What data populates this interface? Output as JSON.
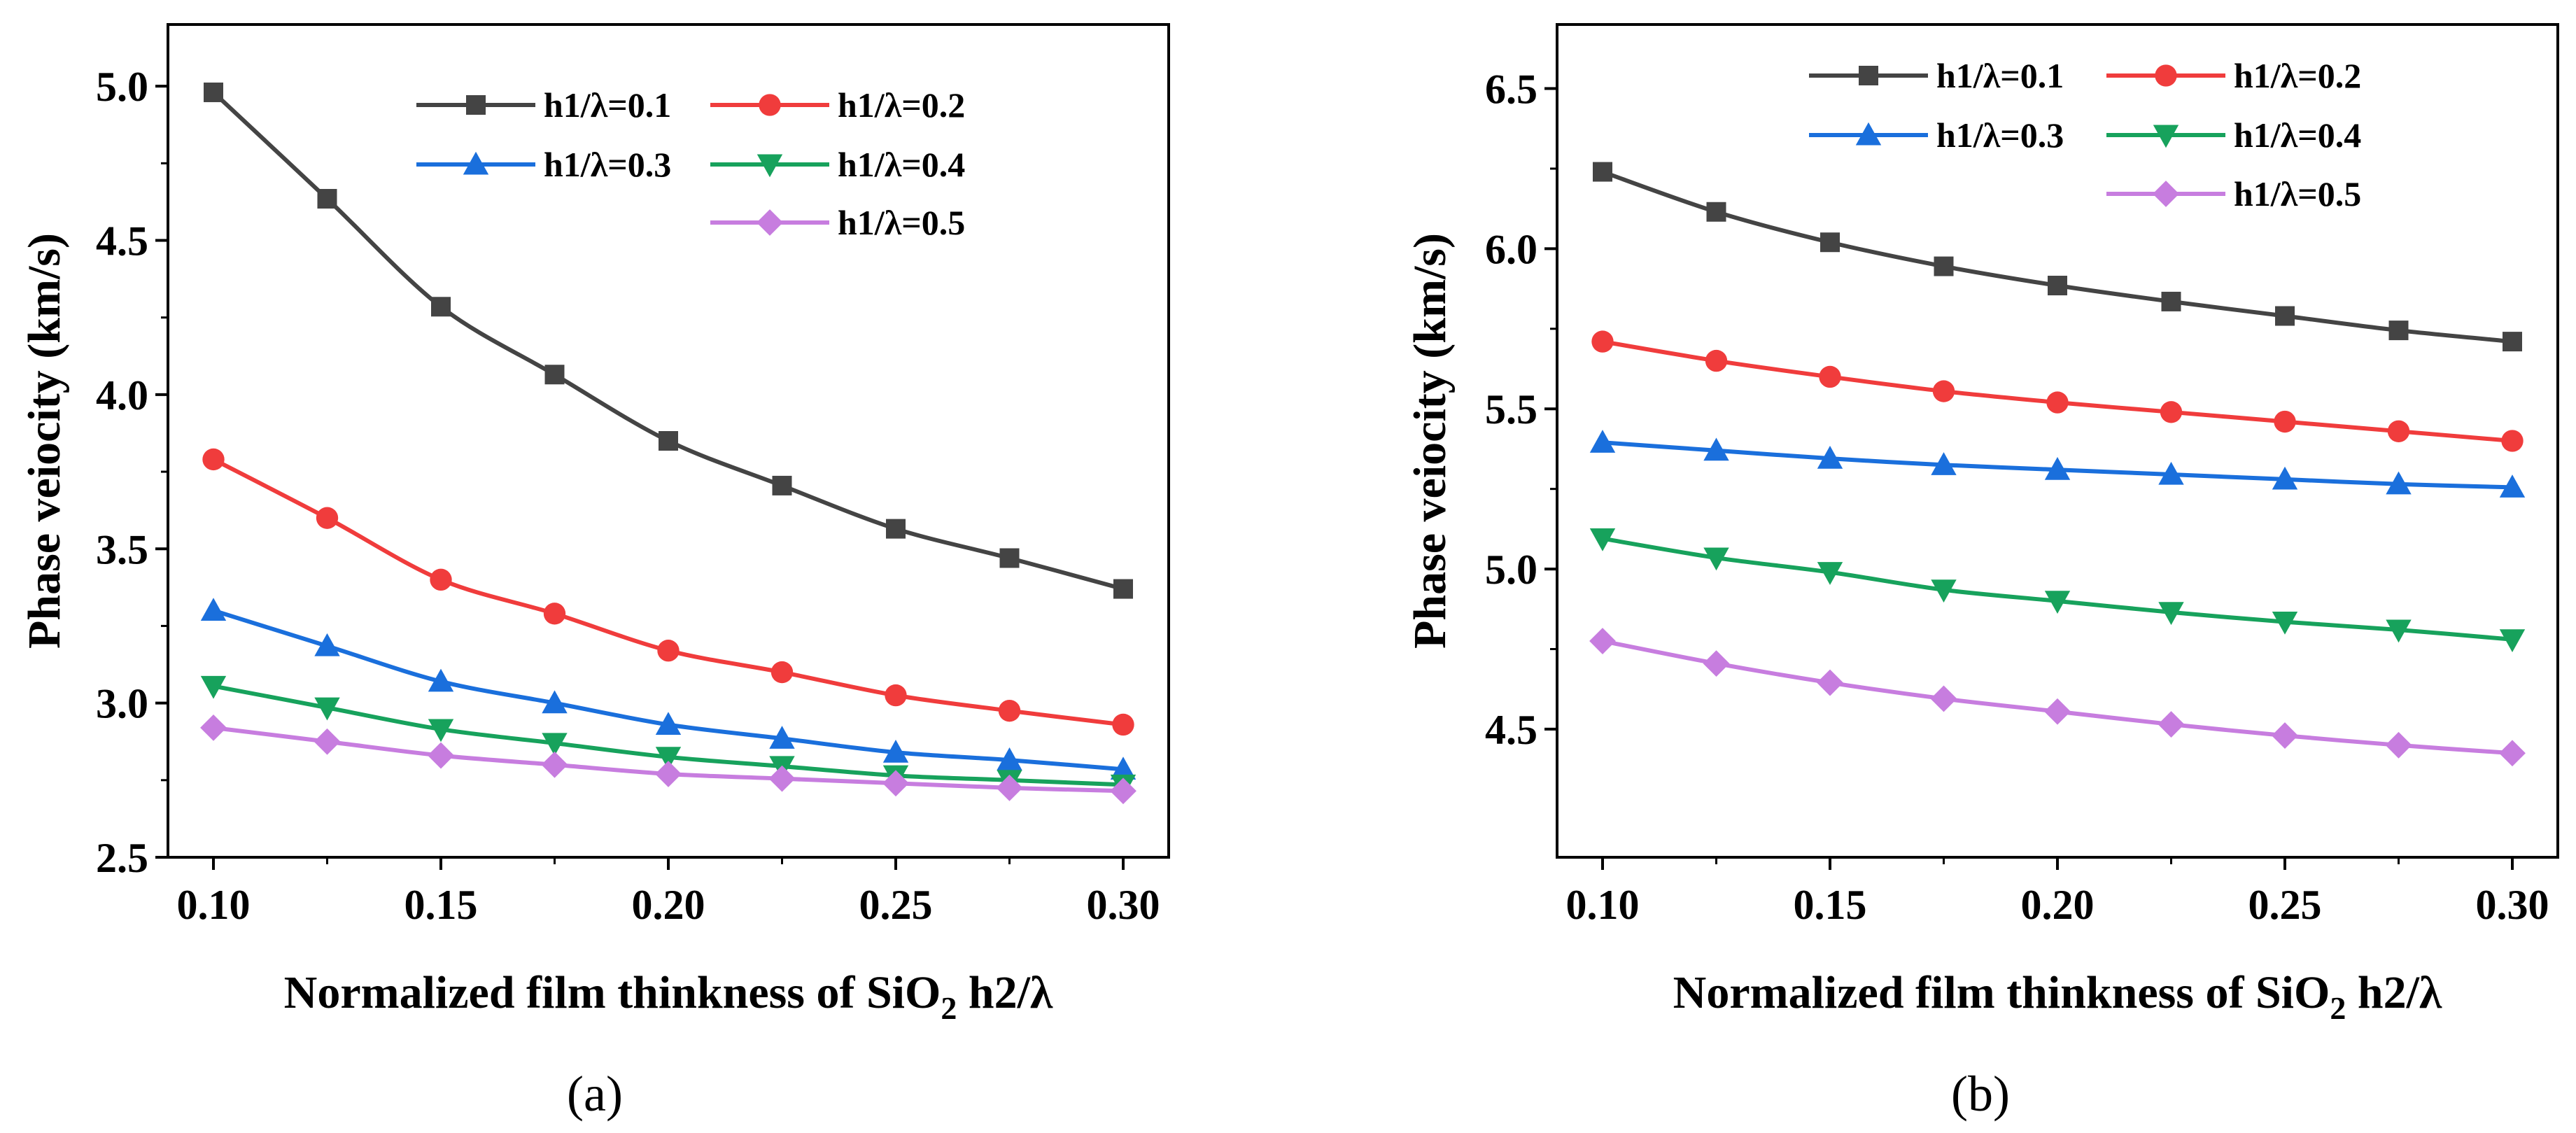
{
  "chart_data": [
    {
      "type": "line",
      "panel_label": "(a)",
      "ylabel": "Phase veiocity (km/s)",
      "xlabel": {
        "pre": "Normalized film thinkness of SiO",
        "sub": "2",
        "post": " h2/λ"
      },
      "xlim": [
        0.09,
        0.31
      ],
      "ylim": [
        2.5,
        5.2
      ],
      "xticks": [
        0.1,
        0.15,
        0.2,
        0.25,
        0.3
      ],
      "xtick_labels": [
        "0.10",
        "0.15",
        "0.20",
        "0.25",
        "0.30"
      ],
      "yticks": [
        2.5,
        3.0,
        3.5,
        4.0,
        4.5,
        5.0
      ],
      "ytick_labels": [
        "2.5",
        "3.0",
        "3.5",
        "4.0",
        "4.5",
        "5.0"
      ],
      "legend_position": "top-right",
      "x": [
        0.1,
        0.125,
        0.15,
        0.175,
        0.2,
        0.225,
        0.25,
        0.275,
        0.3
      ],
      "series": [
        {
          "name": "h1/λ=0.1",
          "color": "#444444",
          "marker": "square",
          "values": [
            4.98,
            4.635,
            4.285,
            4.065,
            3.85,
            3.705,
            3.565,
            3.47,
            3.37
          ]
        },
        {
          "name": "h1/λ=0.2",
          "color": "#f03c3c",
          "marker": "circle",
          "values": [
            3.79,
            3.6,
            3.4,
            3.29,
            3.17,
            3.1,
            3.025,
            2.975,
            2.93
          ]
        },
        {
          "name": "h1/λ=0.3",
          "color": "#1a6fdc",
          "marker": "triangle-up",
          "values": [
            3.3,
            3.185,
            3.07,
            3.0,
            2.93,
            2.885,
            2.84,
            2.815,
            2.785
          ]
        },
        {
          "name": "h1/λ=0.4",
          "color": "#17a25c",
          "marker": "triangle-down",
          "values": [
            3.055,
            2.985,
            2.915,
            2.87,
            2.825,
            2.795,
            2.765,
            2.75,
            2.735
          ]
        },
        {
          "name": "h1/λ=0.5",
          "color": "#c77ddf",
          "marker": "diamond",
          "values": [
            2.92,
            2.875,
            2.83,
            2.8,
            2.77,
            2.755,
            2.74,
            2.725,
            2.715
          ]
        }
      ]
    },
    {
      "type": "line",
      "panel_label": "(b)",
      "ylabel": "Phase veiocity (km/s)",
      "xlabel": {
        "pre": "Normalized film thinkness of SiO",
        "sub": "2",
        "post": " h2/λ"
      },
      "xlim": [
        0.09,
        0.31
      ],
      "ylim": [
        4.1,
        6.7
      ],
      "xticks": [
        0.1,
        0.15,
        0.2,
        0.25,
        0.3
      ],
      "xtick_labels": [
        "0.10",
        "0.15",
        "0.20",
        "0.25",
        "0.30"
      ],
      "yticks": [
        4.5,
        5.0,
        5.5,
        6.0,
        6.5
      ],
      "ytick_labels": [
        "4.5",
        "5.0",
        "5.5",
        "6.0",
        "6.5"
      ],
      "legend_position": "top-right",
      "x": [
        0.1,
        0.125,
        0.15,
        0.175,
        0.2,
        0.225,
        0.25,
        0.275,
        0.3
      ],
      "series": [
        {
          "name": "h1/λ=0.1",
          "color": "#444444",
          "marker": "square",
          "values": [
            6.24,
            6.115,
            6.02,
            5.945,
            5.885,
            5.835,
            5.79,
            5.745,
            5.71
          ]
        },
        {
          "name": "h1/λ=0.2",
          "color": "#f03c3c",
          "marker": "circle",
          "values": [
            5.71,
            5.65,
            5.6,
            5.555,
            5.52,
            5.49,
            5.46,
            5.43,
            5.4
          ]
        },
        {
          "name": "h1/λ=0.3",
          "color": "#1a6fdc",
          "marker": "triangle-up",
          "values": [
            5.395,
            5.37,
            5.345,
            5.325,
            5.31,
            5.295,
            5.28,
            5.265,
            5.255
          ]
        },
        {
          "name": "h1/λ=0.4",
          "color": "#17a25c",
          "marker": "triangle-down",
          "values": [
            5.095,
            5.035,
            4.99,
            4.935,
            4.9,
            4.865,
            4.835,
            4.81,
            4.78
          ]
        },
        {
          "name": "h1/λ=0.5",
          "color": "#c77ddf",
          "marker": "diamond",
          "values": [
            4.775,
            4.705,
            4.645,
            4.595,
            4.555,
            4.515,
            4.48,
            4.45,
            4.425
          ]
        }
      ]
    }
  ]
}
